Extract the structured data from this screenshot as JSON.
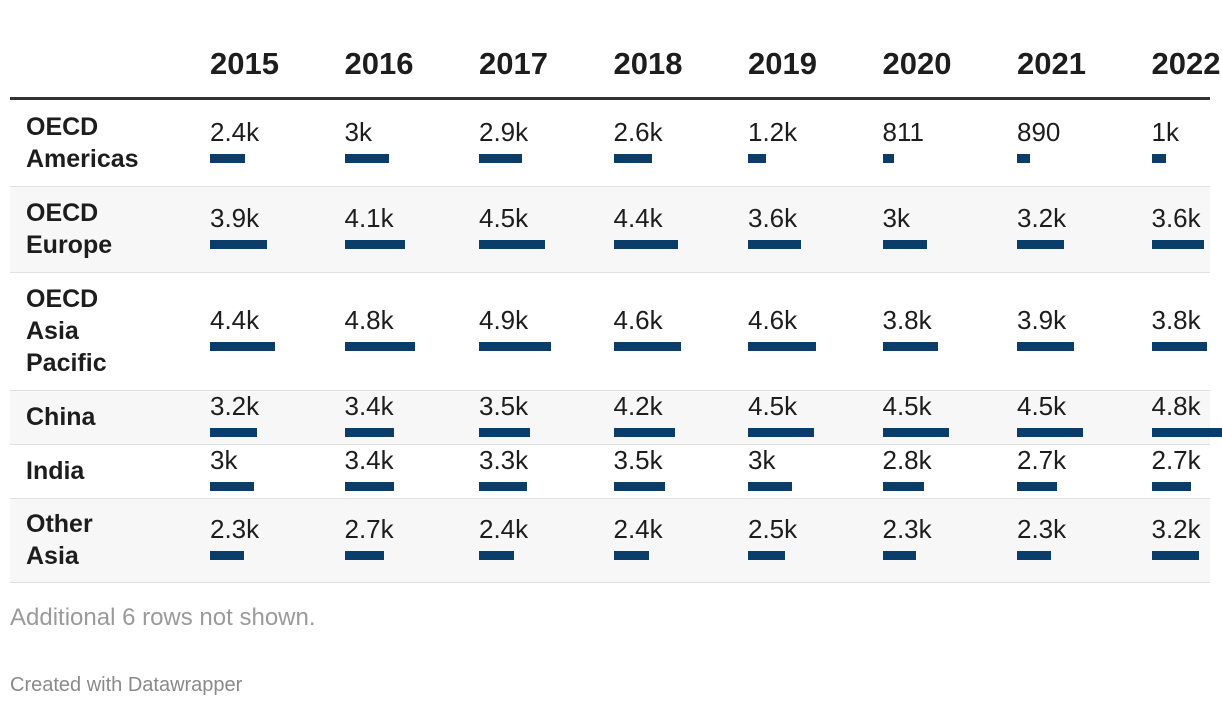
{
  "chart_data": {
    "type": "table",
    "columns": [
      "2015",
      "2016",
      "2017",
      "2018",
      "2019",
      "2020",
      "2021",
      "2022"
    ],
    "bar_scale_max": 4900,
    "rows": [
      {
        "label": [
          "OECD",
          "Americas"
        ],
        "display": [
          "2.4k",
          "3k",
          "2.9k",
          "2.6k",
          "1.2k",
          "811",
          "890",
          "1k"
        ],
        "values": [
          2400,
          3000,
          2900,
          2600,
          1200,
          811,
          890,
          1000
        ]
      },
      {
        "label": [
          "OECD",
          "Europe"
        ],
        "display": [
          "3.9k",
          "4.1k",
          "4.5k",
          "4.4k",
          "3.6k",
          "3k",
          "3.2k",
          "3.6k"
        ],
        "values": [
          3900,
          4100,
          4500,
          4400,
          3600,
          3000,
          3200,
          3600
        ]
      },
      {
        "label": [
          "OECD",
          "Asia",
          "Pacific"
        ],
        "display": [
          "4.4k",
          "4.8k",
          "4.9k",
          "4.6k",
          "4.6k",
          "3.8k",
          "3.9k",
          "3.8k"
        ],
        "values": [
          4400,
          4800,
          4900,
          4600,
          4600,
          3800,
          3900,
          3800
        ]
      },
      {
        "label": [
          "China"
        ],
        "display": [
          "3.2k",
          "3.4k",
          "3.5k",
          "4.2k",
          "4.5k",
          "4.5k",
          "4.5k",
          "4.8k"
        ],
        "values": [
          3200,
          3400,
          3500,
          4200,
          4500,
          4500,
          4500,
          4800
        ]
      },
      {
        "label": [
          "India"
        ],
        "display": [
          "3k",
          "3.4k",
          "3.3k",
          "3.5k",
          "3k",
          "2.8k",
          "2.7k",
          "2.7k"
        ],
        "values": [
          3000,
          3400,
          3300,
          3500,
          3000,
          2800,
          2700,
          2700
        ]
      },
      {
        "label": [
          "Other",
          "Asia"
        ],
        "display": [
          "2.3k",
          "2.7k",
          "2.4k",
          "2.4k",
          "2.5k",
          "2.3k",
          "2.3k",
          "3.2k"
        ],
        "values": [
          2300,
          2700,
          2400,
          2400,
          2500,
          2300,
          2300,
          3200
        ]
      }
    ],
    "bar_color": "#0b3d6b"
  },
  "footer": {
    "note": "Additional 6 rows not shown.",
    "credit": "Created with Datawrapper"
  }
}
